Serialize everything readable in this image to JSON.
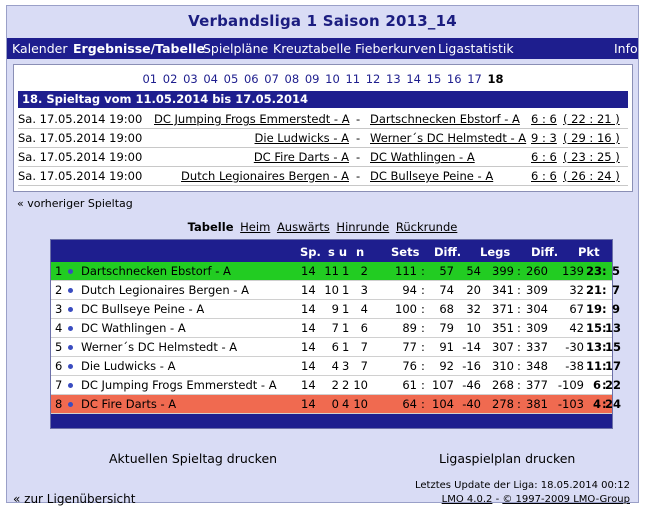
{
  "title": "Verbandsliga 1 Saison 2013_14",
  "nav": {
    "items": [
      "Kalender",
      "Ergebnisse/Tabelle",
      "Spielpläne",
      "Kreuztabelle",
      "Fieberkurven",
      "Ligastatistik"
    ],
    "info": "Info"
  },
  "rounds": [
    "01",
    "02",
    "03",
    "04",
    "05",
    "06",
    "07",
    "08",
    "09",
    "10",
    "11",
    "12",
    "13",
    "14",
    "15",
    "16",
    "17"
  ],
  "current_round": "18",
  "matchday_title": "18. Spieltag vom 11.05.2014 bis 17.05.2014",
  "matches": [
    {
      "date": "Sa. 17.05.2014 19:00",
      "home": "DC Jumping Frogs Emmerstedt - A",
      "sep": "-",
      "away": "Dartschnecken Ebstorf - A",
      "score": "6 : 6",
      "legs": "( 22 : 21 )"
    },
    {
      "date": "Sa. 17.05.2014 19:00",
      "home": "Die Ludwicks - A",
      "sep": "-",
      "away": "Werner´s DC Helmstedt - A",
      "score": "9 : 3",
      "legs": "( 29 : 16 )"
    },
    {
      "date": "Sa. 17.05.2014 19:00",
      "home": "DC Fire Darts - A",
      "sep": "-",
      "away": "DC Wathlingen - A",
      "score": "6 : 6",
      "legs": "( 23 : 25 )"
    },
    {
      "date": "Sa. 17.05.2014 19:00",
      "home": "Dutch Legionaires Bergen - A",
      "sep": "-",
      "away": "DC Bullseye Peine - A",
      "score": "6 : 6",
      "legs": "( 26 : 24 )"
    }
  ],
  "prev_link": "« vorheriger Spieltag",
  "table_links": {
    "current": "Tabelle",
    "others": [
      "Heim",
      "Auswärts",
      "Hinrunde",
      "Rückrunde"
    ]
  },
  "standings": {
    "headers": {
      "sp": "Sp.",
      "sun": "s u",
      "n": "n",
      "sets": "Sets",
      "diff1": "Diff.",
      "legs": "Legs",
      "diff2": "Diff.",
      "pkt": "Pkt"
    },
    "rows": [
      {
        "pos": "1",
        "team": "Dartschnecken Ebstorf - A",
        "sp": "14",
        "s": "11",
        "u": "1",
        "n": "2",
        "sets_a": "111",
        "sets_b": "57",
        "d1": "54",
        "legs_a": "399",
        "legs_b": "260",
        "d2": "139",
        "p_a": "23",
        "p_b": "5",
        "style": "green"
      },
      {
        "pos": "2",
        "team": "Dutch Legionaires Bergen - A",
        "sp": "14",
        "s": "10",
        "u": "1",
        "n": "3",
        "sets_a": "94",
        "sets_b": "74",
        "d1": "20",
        "legs_a": "341",
        "legs_b": "309",
        "d2": "32",
        "p_a": "21",
        "p_b": "7",
        "style": "normal"
      },
      {
        "pos": "3",
        "team": "DC Bullseye Peine - A",
        "sp": "14",
        "s": "9",
        "u": "1",
        "n": "4",
        "sets_a": "100",
        "sets_b": "68",
        "d1": "32",
        "legs_a": "371",
        "legs_b": "304",
        "d2": "67",
        "p_a": "19",
        "p_b": "9",
        "style": "normal"
      },
      {
        "pos": "4",
        "team": "DC Wathlingen - A",
        "sp": "14",
        "s": "7",
        "u": "1",
        "n": "6",
        "sets_a": "89",
        "sets_b": "79",
        "d1": "10",
        "legs_a": "351",
        "legs_b": "309",
        "d2": "42",
        "p_a": "15",
        "p_b": "13",
        "style": "normal"
      },
      {
        "pos": "5",
        "team": "Werner´s DC Helmstedt - A",
        "sp": "14",
        "s": "6",
        "u": "1",
        "n": "7",
        "sets_a": "77",
        "sets_b": "91",
        "d1": "-14",
        "legs_a": "307",
        "legs_b": "337",
        "d2": "-30",
        "p_a": "13",
        "p_b": "15",
        "style": "normal"
      },
      {
        "pos": "6",
        "team": "Die Ludwicks - A",
        "sp": "14",
        "s": "4",
        "u": "3",
        "n": "7",
        "sets_a": "76",
        "sets_b": "92",
        "d1": "-16",
        "legs_a": "310",
        "legs_b": "348",
        "d2": "-38",
        "p_a": "11",
        "p_b": "17",
        "style": "normal"
      },
      {
        "pos": "7",
        "team": "DC Jumping Frogs Emmerstedt - A",
        "sp": "14",
        "s": "2",
        "u": "2",
        "n": "10",
        "sets_a": "61",
        "sets_b": "107",
        "d1": "-46",
        "legs_a": "268",
        "legs_b": "377",
        "d2": "-109",
        "p_a": "6",
        "p_b": "22",
        "style": "normal"
      },
      {
        "pos": "8",
        "team": "DC Fire Darts - A",
        "sp": "14",
        "s": "0",
        "u": "4",
        "n": "10",
        "sets_a": "64",
        "sets_b": "104",
        "d1": "-40",
        "legs_a": "278",
        "legs_b": "381",
        "d2": "-103",
        "p_a": "4",
        "p_b": "24",
        "style": "red"
      }
    ]
  },
  "print_matchday": "Aktuellen Spieltag drucken",
  "print_schedule": "Ligaspielplan drucken",
  "last_update": "Letztes Update der Liga: 18.05.2014 00:12",
  "lmo_version": "LMO 4.0.2",
  "lmo_copyright": "© 1997-2009 LMO-Group",
  "back_link": "« zur Ligenübersicht",
  "colors": {
    "nav": "#1e1e8e",
    "background": "#d9dcf5",
    "promotion": "#22cc22",
    "relegation": "#f06a50"
  }
}
